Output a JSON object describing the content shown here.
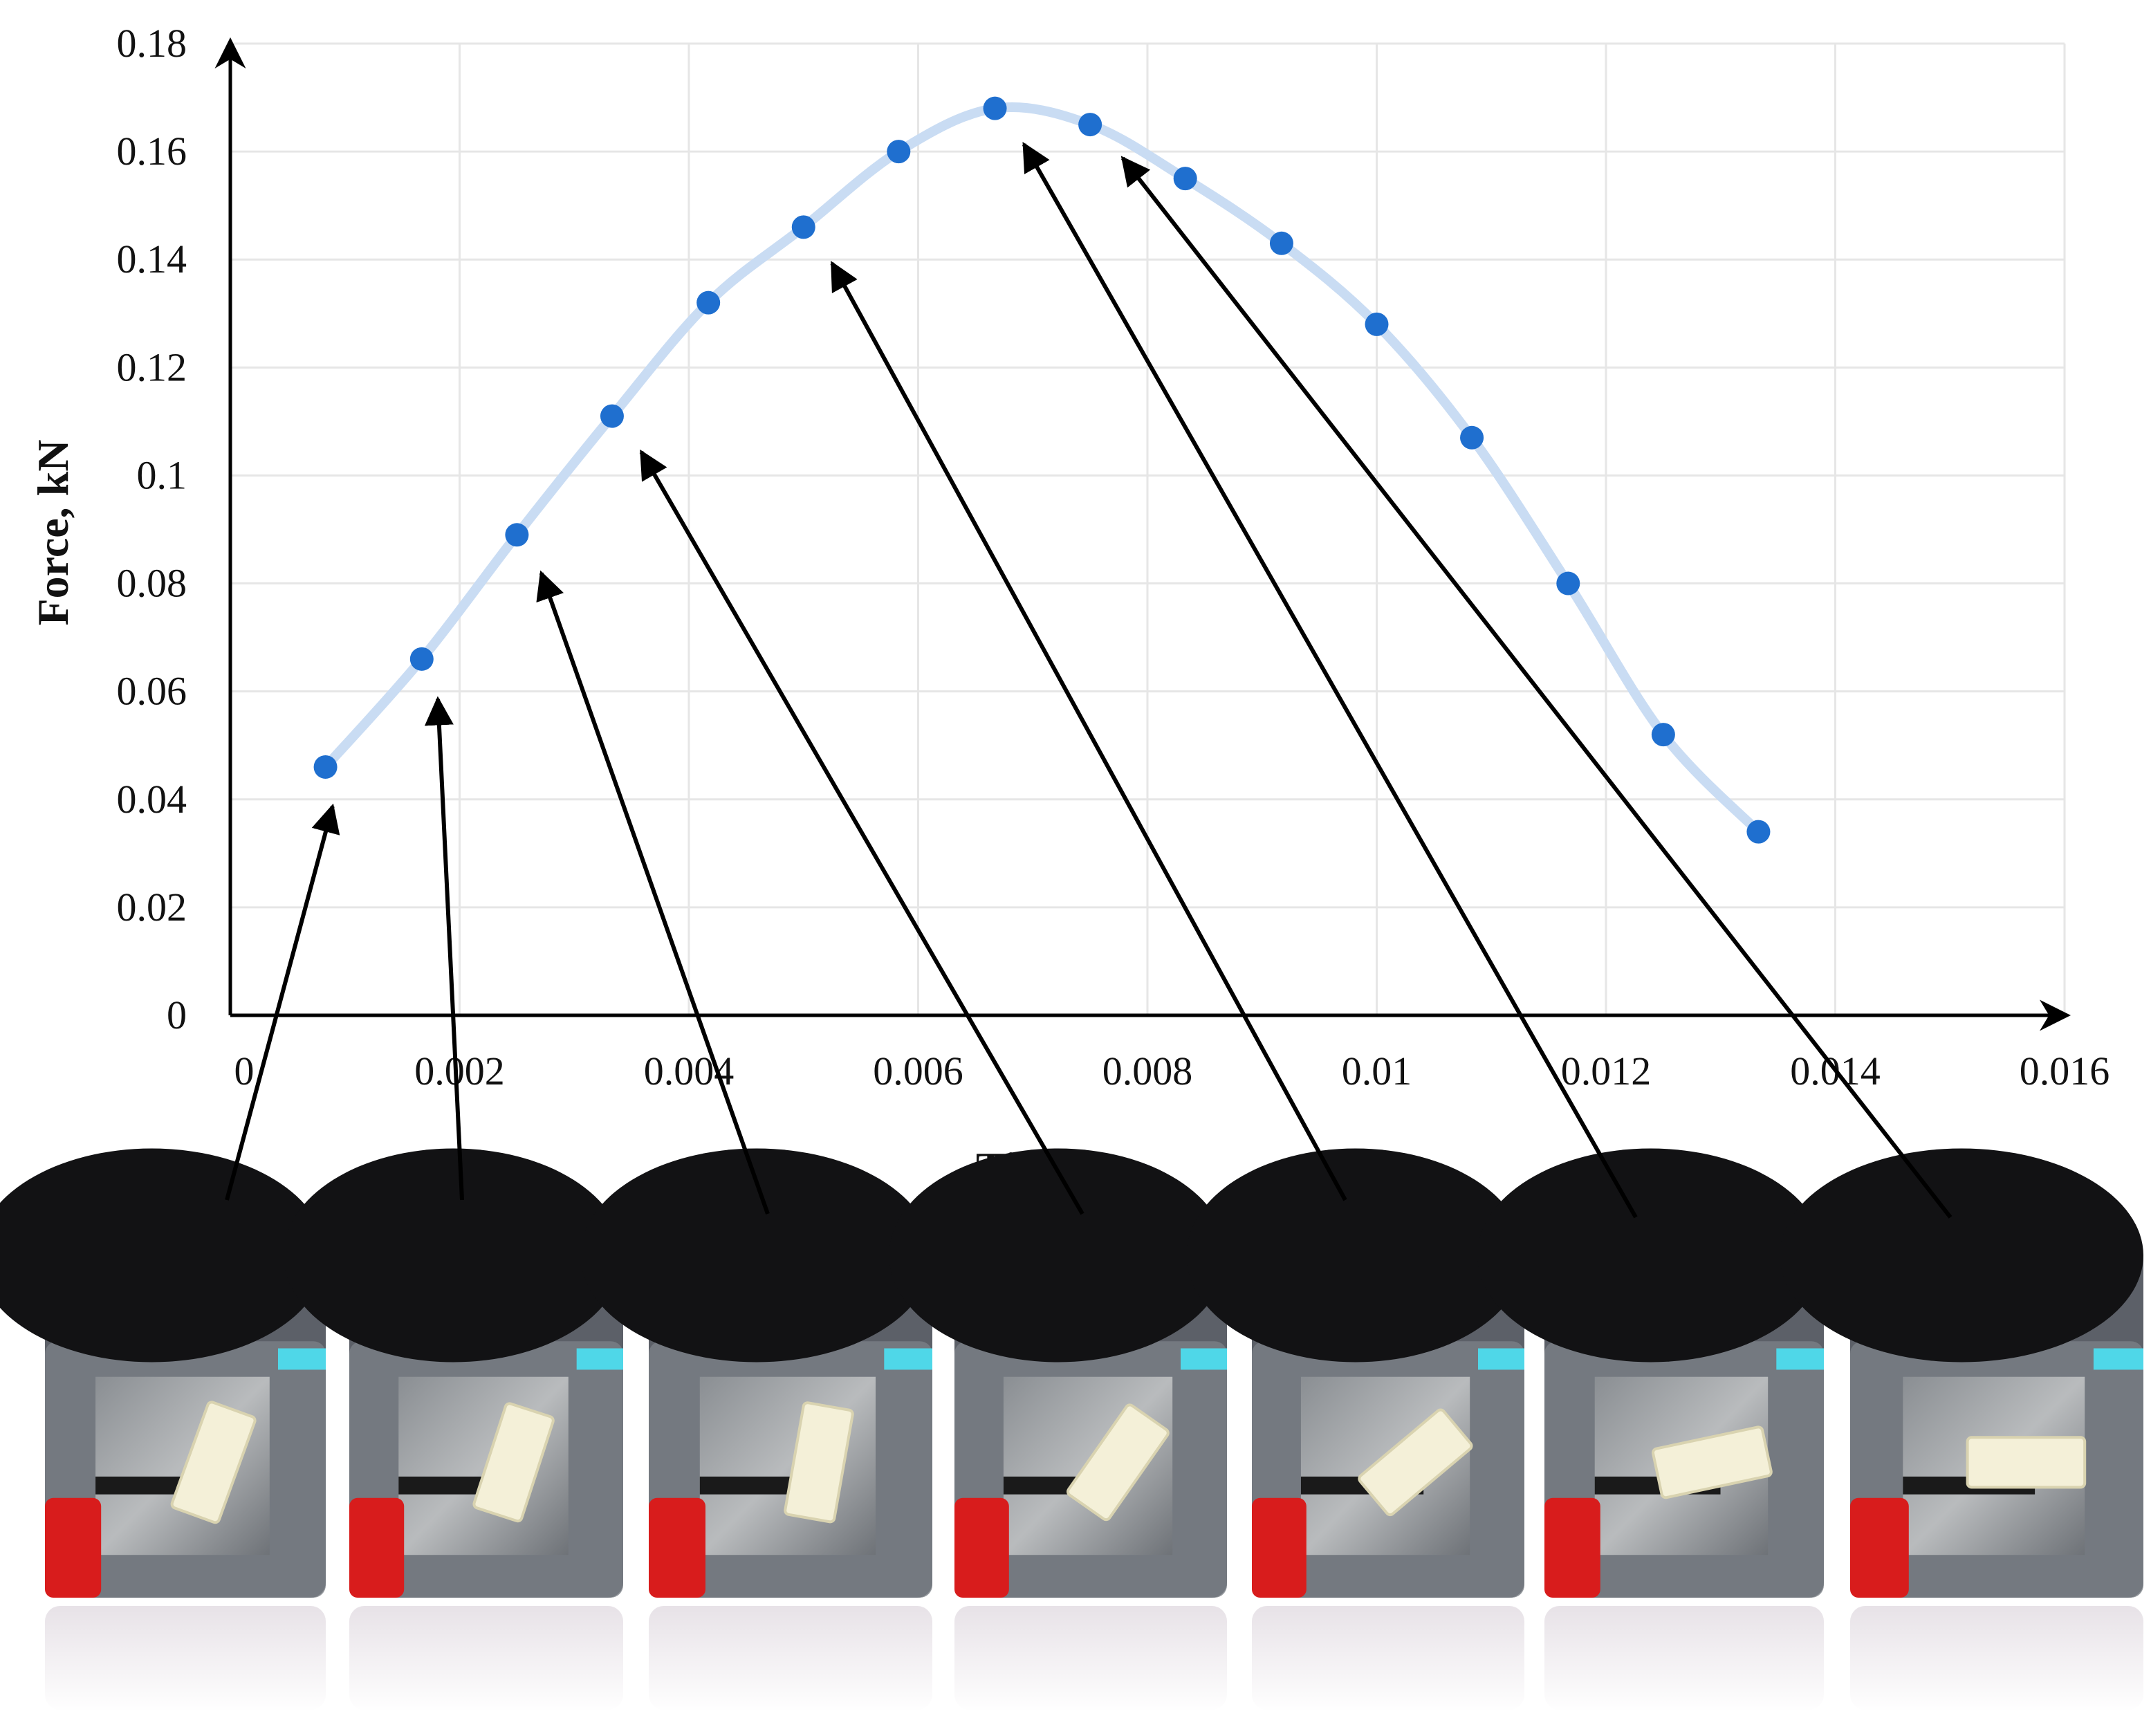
{
  "chart_data": {
    "type": "scatter",
    "title": "",
    "xlabel": "Time, s",
    "ylabel": "Force, kN",
    "xlim": [
      0,
      0.016
    ],
    "ylim": [
      0,
      0.18
    ],
    "grid": true,
    "x_ticks": [
      "0",
      "0.002",
      "0.004",
      "0.006",
      "0.008",
      "0.01",
      "0.012",
      "0.014",
      "0.016"
    ],
    "y_ticks": [
      "0",
      "0.02",
      "0.04",
      "0.06",
      "0.08",
      "0.1",
      "0.12",
      "0.14",
      "0.16",
      "0.18"
    ],
    "series": [
      {
        "color": "#1f6fcf",
        "line_color": "#c9dcf3",
        "smooth": true,
        "x": [
          0.00083,
          0.00167,
          0.0025,
          0.00333,
          0.00417,
          0.005,
          0.00583,
          0.00667,
          0.0075,
          0.00833,
          0.00917,
          0.01,
          0.01083,
          0.01167,
          0.0125,
          0.01333
        ],
        "y": [
          0.046,
          0.066,
          0.089,
          0.111,
          0.132,
          0.146,
          0.16,
          0.168,
          0.165,
          0.155,
          0.143,
          0.128,
          0.107,
          0.08,
          0.052,
          0.034
        ]
      }
    ],
    "annotations": {
      "arrow_target_indices": [
        0,
        1,
        2,
        3,
        5,
        7,
        8
      ],
      "frames": [
        {
          "id": "frame-1",
          "block_angle_deg": -70
        },
        {
          "id": "frame-2",
          "block_angle_deg": -72
        },
        {
          "id": "frame-3",
          "block_angle_deg": -80
        },
        {
          "id": "frame-4",
          "block_angle_deg": -55
        },
        {
          "id": "frame-5",
          "block_angle_deg": -40
        },
        {
          "id": "frame-6",
          "block_angle_deg": -12
        },
        {
          "id": "frame-7",
          "block_angle_deg": 0
        }
      ]
    }
  }
}
